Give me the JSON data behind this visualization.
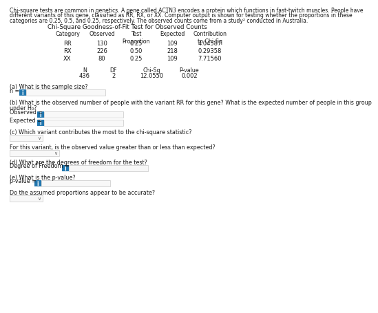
{
  "title_text": "Chi-Square Goodness-of-Fit Test for Observed Counts",
  "intro_lines": [
    "Chi-square tests are common in genetics. A gene called ACTN3 encodes a protein which functions in fast-twitch muscles. People have",
    "different variants of this gene, classified as RR, RX, or XX. Computer output is shown for testing whether the proportions in these",
    "categories are 0.25, 0.5, and 0.25, respectively. The observed counts come from a study² conducted in Australia."
  ],
  "table_headers": [
    "Category",
    "Observed",
    "Test\nProportion",
    "Expected",
    "Contribution\nto Chi-Sq"
  ],
  "table_rows": [
    [
      "RR",
      "130",
      "0.25",
      "109",
      "4.04587"
    ],
    [
      "RX",
      "226",
      "0.50",
      "218",
      "0.29358"
    ],
    [
      "XX",
      "80",
      "0.25",
      "109",
      "7.71560"
    ]
  ],
  "summary_headers": [
    "N",
    "DF",
    "Chi-Sq",
    "P-value"
  ],
  "summary_values": [
    "436",
    "2",
    "12.0550",
    "0.002"
  ],
  "questions": [
    "(a) What is the sample size?",
    "(b) What is the observed number of people with the variant RR for this gene? What is the expected number of people in this group",
    "under H₀?",
    "(c) Which variant contributes the most to the chi-square statistic?",
    "For this variant, is the observed value greater than or less than expected?",
    "(d) What are the degrees of freedom for the test?",
    "(e) What is the p-value?",
    "Do the assumed proportions appear to be accurate?"
  ],
  "bg_color": "#ffffff",
  "text_color": "#1a1a1a",
  "box_color": "#2176ae",
  "input_bg": "#f8f8f8",
  "border_color": "#bbbbbb",
  "fi_intro": 5.5,
  "fi_title": 6.3,
  "fi_table": 6.0,
  "fi_q": 5.8,
  "fi_label": 5.8
}
